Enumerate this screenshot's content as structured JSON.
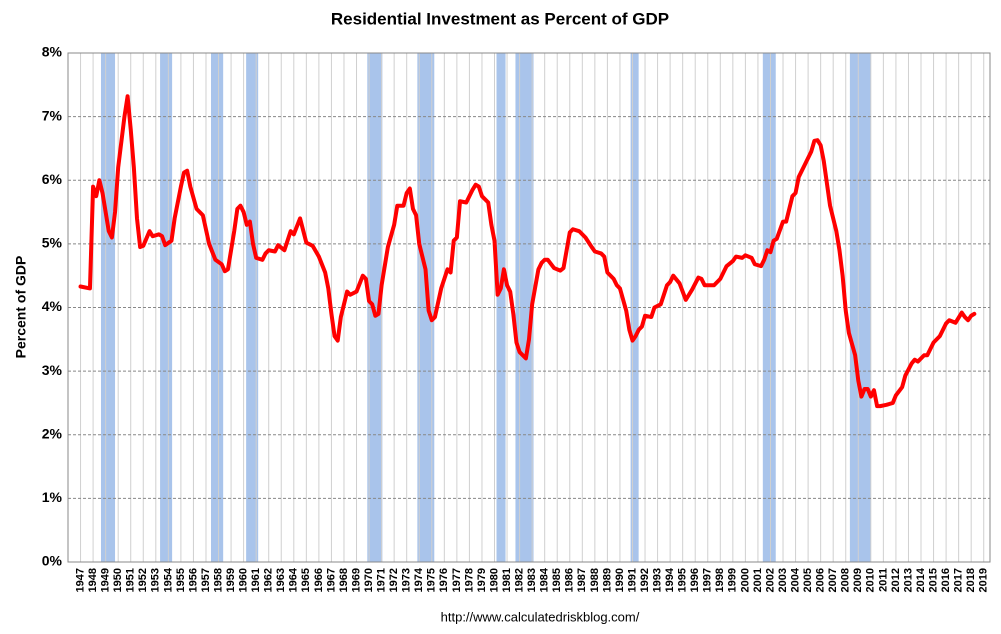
{
  "chart_data": {
    "type": "line",
    "title": "Residential Investment as Percent of GDP",
    "y_label": "Percent of GDP",
    "source": "http://www.calculatedriskblog.com/",
    "color": "#ff0000",
    "recession_color": "#a9c4eb",
    "grid": true,
    "xlim": [
      1946,
      2019.5
    ],
    "ylim": [
      0,
      8
    ],
    "yticks": [
      {
        "value": 0,
        "label": "0%"
      },
      {
        "value": 1,
        "label": "1%"
      },
      {
        "value": 2,
        "label": "2%"
      },
      {
        "value": 3,
        "label": "3%"
      },
      {
        "value": 4,
        "label": "4%"
      },
      {
        "value": 5,
        "label": "5%"
      },
      {
        "value": 6,
        "label": "6%"
      },
      {
        "value": 7,
        "label": "7%"
      },
      {
        "value": 8,
        "label": "8%"
      }
    ],
    "xticks": [
      1947,
      1948,
      1949,
      1950,
      1951,
      1952,
      1953,
      1954,
      1955,
      1956,
      1957,
      1958,
      1959,
      1960,
      1961,
      1962,
      1963,
      1964,
      1965,
      1966,
      1967,
      1968,
      1969,
      1970,
      1971,
      1972,
      1973,
      1974,
      1975,
      1976,
      1977,
      1978,
      1979,
      1980,
      1981,
      1982,
      1983,
      1984,
      1985,
      1986,
      1987,
      1988,
      1989,
      1990,
      1991,
      1992,
      1993,
      1994,
      1995,
      1996,
      1997,
      1998,
      1999,
      2000,
      2001,
      2002,
      2003,
      2004,
      2005,
      2006,
      2007,
      2008,
      2009,
      2010,
      2011,
      2012,
      2013,
      2014,
      2015,
      2016,
      2017,
      2018,
      2019
    ],
    "recessions": [
      [
        1948.63,
        1949.75
      ],
      [
        1953.34,
        1954.3
      ],
      [
        1957.4,
        1958.37
      ],
      [
        1960.2,
        1961.16
      ],
      [
        1969.86,
        1971.06
      ],
      [
        1973.85,
        1975.2
      ],
      [
        1980.16,
        1980.88
      ],
      [
        1981.67,
        1983.11
      ],
      [
        1990.85,
        1991.49
      ],
      [
        2001.39,
        2002.42
      ],
      [
        2008.33,
        2010.0
      ]
    ],
    "x": [
      1947.0,
      1947.75,
      1948.0,
      1948.25,
      1948.5,
      1948.75,
      1949.25,
      1949.5,
      1949.75,
      1950.0,
      1950.5,
      1950.75,
      1951.0,
      1951.25,
      1951.5,
      1951.75,
      1952.0,
      1952.5,
      1952.75,
      1953.25,
      1953.5,
      1953.75,
      1954.25,
      1954.5,
      1955.0,
      1955.25,
      1955.5,
      1955.75,
      1956.25,
      1956.75,
      1957.25,
      1957.75,
      1958.25,
      1958.5,
      1958.75,
      1959.25,
      1959.5,
      1959.75,
      1960.0,
      1960.25,
      1960.5,
      1960.75,
      1961.0,
      1961.5,
      1961.75,
      1962.0,
      1962.5,
      1962.75,
      1963.25,
      1963.75,
      1964.0,
      1964.5,
      1965.0,
      1965.5,
      1966.0,
      1966.5,
      1966.75,
      1967.0,
      1967.25,
      1967.5,
      1967.75,
      1968.25,
      1968.5,
      1969.0,
      1969.5,
      1969.75,
      1970.0,
      1970.25,
      1970.5,
      1970.75,
      1971.0,
      1971.5,
      1972.0,
      1972.25,
      1972.75,
      1973.0,
      1973.25,
      1973.5,
      1973.75,
      1974.0,
      1974.5,
      1974.75,
      1975.0,
      1975.25,
      1975.75,
      1976.25,
      1976.5,
      1976.75,
      1977.0,
      1977.25,
      1977.75,
      1978.25,
      1978.5,
      1978.75,
      1979.0,
      1979.5,
      1979.75,
      1980.0,
      1980.25,
      1980.5,
      1980.75,
      1981.0,
      1981.25,
      1981.5,
      1981.75,
      1982.0,
      1982.5,
      1982.75,
      1983.0,
      1983.5,
      1983.75,
      1984.0,
      1984.25,
      1984.75,
      1985.25,
      1985.5,
      1985.75,
      1986.0,
      1986.25,
      1986.75,
      1987.25,
      1987.75,
      1988.0,
      1988.5,
      1988.75,
      1989.0,
      1989.5,
      1989.75,
      1990.0,
      1990.5,
      1990.75,
      1991.0,
      1991.25,
      1991.5,
      1991.75,
      1992.0,
      1992.5,
      1992.75,
      1993.25,
      1993.75,
      1994.0,
      1994.25,
      1994.75,
      1995.25,
      1995.75,
      1996.25,
      1996.5,
      1996.75,
      1997.5,
      1998.0,
      1998.5,
      1999.0,
      1999.25,
      1999.75,
      2000.0,
      2000.5,
      2000.75,
      2001.25,
      2001.5,
      2001.75,
      2002.0,
      2002.25,
      2002.5,
      2003.0,
      2003.25,
      2003.75,
      2004.0,
      2004.25,
      2004.75,
      2005.25,
      2005.5,
      2005.75,
      2006.0,
      2006.25,
      2006.75,
      2007.25,
      2007.5,
      2007.75,
      2008.0,
      2008.25,
      2008.75,
      2009.0,
      2009.25,
      2009.5,
      2009.75,
      2010.0,
      2010.25,
      2010.5,
      2010.75,
      2011.25,
      2011.75,
      2012.0,
      2012.5,
      2012.75,
      2013.25,
      2013.5,
      2013.75,
      2014.25,
      2014.5,
      2015.0,
      2015.5,
      2016.0,
      2016.25,
      2016.75,
      2017.25,
      2017.5,
      2017.75,
      2018.0,
      2018.25
    ],
    "values": [
      4.33,
      4.3,
      5.9,
      5.75,
      6.0,
      5.8,
      5.2,
      5.1,
      5.5,
      6.2,
      7.0,
      7.32,
      6.8,
      6.2,
      5.4,
      4.95,
      4.97,
      5.2,
      5.12,
      5.15,
      5.12,
      4.98,
      5.05,
      5.4,
      5.9,
      6.12,
      6.15,
      5.9,
      5.55,
      5.45,
      5.0,
      4.75,
      4.68,
      4.57,
      4.6,
      5.2,
      5.55,
      5.6,
      5.5,
      5.3,
      5.35,
      5.0,
      4.78,
      4.75,
      4.85,
      4.9,
      4.88,
      4.98,
      4.9,
      5.2,
      5.15,
      5.4,
      5.02,
      4.97,
      4.8,
      4.55,
      4.3,
      3.9,
      3.55,
      3.48,
      3.85,
      4.25,
      4.2,
      4.25,
      4.5,
      4.45,
      4.1,
      4.05,
      3.87,
      3.9,
      4.35,
      4.95,
      5.3,
      5.6,
      5.6,
      5.8,
      5.87,
      5.55,
      5.45,
      5.0,
      4.6,
      3.95,
      3.8,
      3.85,
      4.3,
      4.6,
      4.55,
      5.05,
      5.1,
      5.67,
      5.65,
      5.85,
      5.93,
      5.9,
      5.75,
      5.65,
      5.3,
      5.05,
      4.2,
      4.3,
      4.6,
      4.35,
      4.25,
      3.9,
      3.45,
      3.3,
      3.2,
      3.5,
      4.05,
      4.6,
      4.7,
      4.75,
      4.75,
      4.62,
      4.58,
      4.62,
      4.9,
      5.18,
      5.23,
      5.2,
      5.1,
      4.95,
      4.88,
      4.85,
      4.8,
      4.55,
      4.45,
      4.35,
      4.3,
      3.95,
      3.65,
      3.48,
      3.55,
      3.65,
      3.7,
      3.87,
      3.85,
      4.0,
      4.05,
      4.35,
      4.4,
      4.5,
      4.38,
      4.12,
      4.28,
      4.47,
      4.45,
      4.35,
      4.35,
      4.45,
      4.65,
      4.73,
      4.8,
      4.78,
      4.82,
      4.78,
      4.68,
      4.65,
      4.75,
      4.9,
      4.87,
      5.05,
      5.08,
      5.35,
      5.35,
      5.75,
      5.8,
      6.05,
      6.25,
      6.45,
      6.62,
      6.63,
      6.55,
      6.3,
      5.6,
      5.2,
      4.9,
      4.5,
      3.95,
      3.6,
      3.25,
      2.85,
      2.6,
      2.72,
      2.72,
      2.6,
      2.7,
      2.45,
      2.45,
      2.47,
      2.5,
      2.62,
      2.75,
      2.93,
      3.12,
      3.18,
      3.15,
      3.25,
      3.25,
      3.45,
      3.55,
      3.75,
      3.8,
      3.76,
      3.92,
      3.85,
      3.8,
      3.87,
      3.9
    ]
  }
}
